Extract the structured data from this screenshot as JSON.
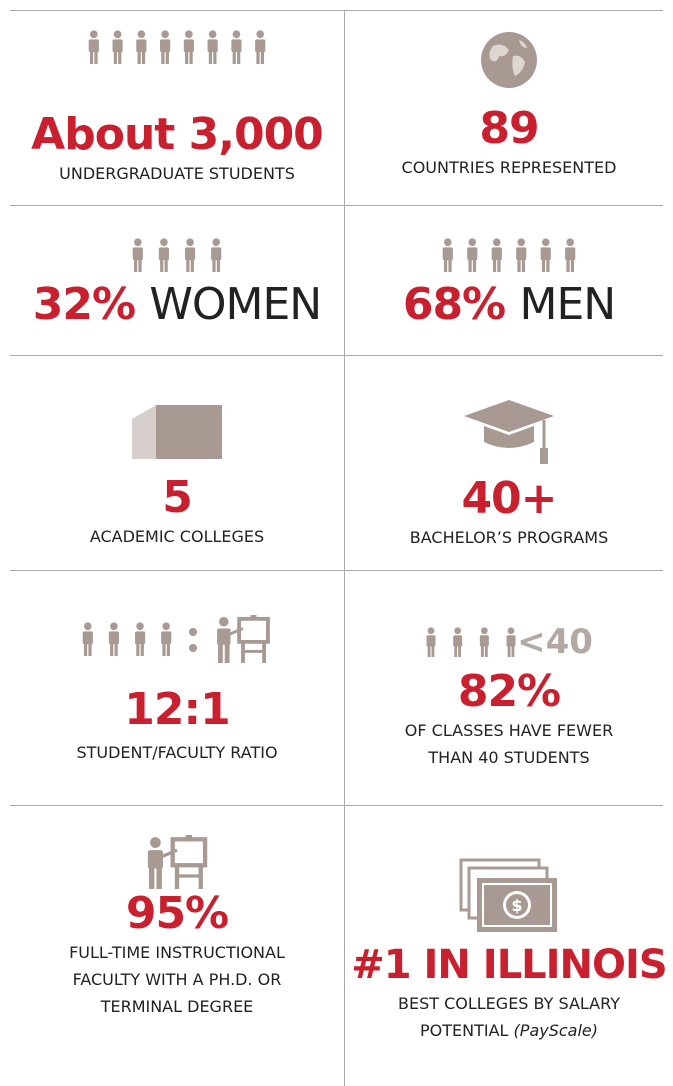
{
  "cells": [
    {
      "big": "About 3,000",
      "caption": [
        "UNDERGRADUATE STUDENTS"
      ]
    },
    {
      "big": "89",
      "caption": [
        "COUNTRIES REPRESENTED"
      ]
    },
    {
      "big": "32%",
      "big_suffix": "WOMEN"
    },
    {
      "big": "68%",
      "big_suffix": "MEN"
    },
    {
      "big": "5",
      "caption": [
        "ACADEMIC COLLEGES"
      ]
    },
    {
      "big": "40+",
      "caption": [
        "BACHELOR’S PROGRAMS"
      ]
    },
    {
      "big": "12:1",
      "caption": [
        "STUDENT/FACULTY RATIO"
      ]
    },
    {
      "icon_text": "<40",
      "big": "82%",
      "caption": [
        "OF CLASSES HAVE FEWER",
        "THAN 40 STUDENTS"
      ]
    },
    {
      "big": "95%",
      "caption": [
        "FULL-TIME INSTRUCTIONAL",
        "FACULTY WITH A PH.D. OR",
        "TERMINAL DEGREE"
      ]
    },
    {
      "big": "#1 IN ILLINOIS",
      "caption": [
        "BEST COLLEGES BY SALARY",
        "POTENTIAL"
      ],
      "caption_note": "(PayScale)"
    }
  ]
}
